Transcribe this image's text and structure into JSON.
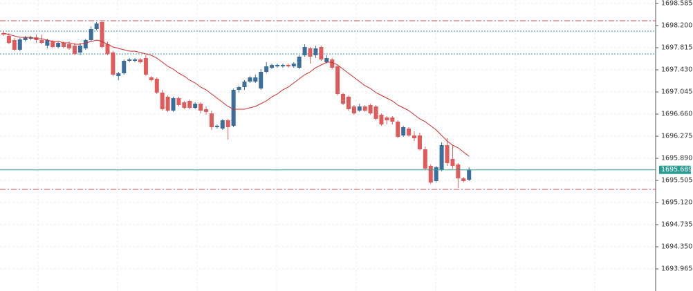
{
  "chart_data": {
    "type": "candlestick",
    "ylim": [
      1693.58,
      1698.645
    ],
    "yticks": [
      1698.585,
      {
        "value": 1698.2,
        "label": "1698.200"
      },
      1697.815,
      {
        "value": 1697.43,
        "label": "1697.430"
      },
      1697.045,
      {
        "value": 1696.66,
        "label": "1696.660"
      },
      1696.275,
      {
        "value": 1695.89,
        "label": "1695.890"
      },
      1695.505,
      {
        "value": 1695.12,
        "label": "1695.120"
      },
      1694.735,
      {
        "value": 1694.35,
        "label": "1694.350"
      },
      1693.965
    ],
    "grid": true,
    "up_color": "#3b6e9b",
    "down_color": "#e05c5c",
    "open": [
      1698.068,
      1698.019,
      1697.947,
      1697.779,
      1697.947,
      1697.971,
      1697.995,
      1697.947,
      1697.851,
      1697.923,
      1697.827,
      1697.899,
      1697.875,
      1697.851,
      1697.731,
      1697.803,
      1697.947,
      1698.14,
      1698.26,
      1697.875,
      1697.731,
      1697.322,
      1697.37,
      1697.586,
      1697.586,
      1697.61,
      1697.635,
      1697.298,
      1697.274,
      1697.033,
      1696.961,
      1696.72,
      1696.937,
      1696.865,
      1696.889,
      1696.768,
      1696.84,
      1696.744,
      1696.672,
      1696.431,
      1696.407,
      1696.552,
      1696.455,
      1697.081,
      1697.129,
      1697.225,
      1697.225,
      1697.105,
      1697.394,
      1697.466,
      1697.49,
      1697.49,
      1697.514,
      1697.49,
      1697.466,
      1697.683,
      1697.803,
      1697.683,
      1697.827,
      1697.562,
      1697.61,
      1697.49,
      1697.009,
      1696.961,
      1696.792,
      1696.72,
      1696.792,
      1696.816,
      1696.792,
      1696.648,
      1696.6,
      1696.6,
      1696.528,
      1696.287,
      1696.407,
      1696.287,
      1696.287,
      1696.046,
      1695.758,
      1695.493,
      1695.686,
      1696.119,
      1695.878,
      1695.782,
      1695.541,
      1695.517
    ],
    "high": [
      1698.104,
      1698.068,
      1697.983,
      1697.983,
      1698.019,
      1698.019,
      1698.044,
      1698.044,
      1697.971,
      1697.947,
      1697.923,
      1697.923,
      1697.923,
      1697.899,
      1697.899,
      1697.971,
      1698.188,
      1698.26,
      1698.284,
      1697.923,
      1697.755,
      1697.394,
      1697.61,
      1697.635,
      1697.635,
      1697.635,
      1697.683,
      1697.322,
      1697.298,
      1697.081,
      1696.985,
      1696.961,
      1696.961,
      1696.889,
      1696.913,
      1696.865,
      1696.865,
      1696.792,
      1696.72,
      1696.48,
      1696.576,
      1696.576,
      1697.105,
      1697.153,
      1697.25,
      1697.322,
      1697.346,
      1697.442,
      1697.562,
      1697.538,
      1697.538,
      1697.538,
      1697.538,
      1697.562,
      1697.683,
      1697.875,
      1697.827,
      1697.851,
      1697.851,
      1697.683,
      1697.635,
      1697.514,
      1697.033,
      1696.985,
      1696.816,
      1696.84,
      1696.816,
      1696.84,
      1696.816,
      1696.672,
      1696.624,
      1696.624,
      1696.552,
      1696.455,
      1696.431,
      1696.359,
      1696.335,
      1696.095,
      1695.782,
      1695.758,
      1696.167,
      1696.239,
      1696.119,
      1695.806,
      1695.565,
      1695.734
    ],
    "low": [
      1698.019,
      1697.875,
      1697.755,
      1697.755,
      1697.923,
      1697.947,
      1697.899,
      1697.875,
      1697.803,
      1697.803,
      1697.803,
      1697.803,
      1697.779,
      1697.683,
      1697.683,
      1697.779,
      1697.923,
      1698.116,
      1697.803,
      1697.683,
      1697.322,
      1697.25,
      1697.346,
      1697.562,
      1697.562,
      1697.538,
      1697.322,
      1697.225,
      1697.009,
      1696.72,
      1696.696,
      1696.696,
      1696.792,
      1696.744,
      1696.744,
      1696.744,
      1696.672,
      1696.648,
      1696.383,
      1696.407,
      1696.383,
      1696.215,
      1696.431,
      1697.033,
      1697.081,
      1697.201,
      1697.201,
      1697.081,
      1697.37,
      1697.442,
      1697.466,
      1697.466,
      1697.466,
      1697.466,
      1697.442,
      1697.659,
      1697.538,
      1697.635,
      1697.586,
      1697.538,
      1697.442,
      1696.985,
      1696.816,
      1696.72,
      1696.648,
      1696.696,
      1696.696,
      1696.648,
      1696.552,
      1696.455,
      1696.48,
      1696.48,
      1696.239,
      1696.263,
      1696.263,
      1696.191,
      1696.022,
      1695.686,
      1695.445,
      1695.469,
      1695.662,
      1695.758,
      1695.71,
      1695.373,
      1695.469,
      1695.493
    ],
    "close": [
      1698.044,
      1697.899,
      1697.779,
      1697.959,
      1697.995,
      1697.995,
      1697.947,
      1697.899,
      1697.947,
      1697.827,
      1697.899,
      1697.827,
      1697.803,
      1697.707,
      1697.851,
      1697.947,
      1698.14,
      1698.236,
      1697.827,
      1697.707,
      1697.346,
      1697.37,
      1697.586,
      1697.61,
      1697.61,
      1697.562,
      1697.346,
      1697.25,
      1697.033,
      1696.744,
      1696.72,
      1696.937,
      1696.816,
      1696.768,
      1696.768,
      1696.84,
      1696.72,
      1696.696,
      1696.431,
      1696.455,
      1696.552,
      1696.431,
      1697.081,
      1697.129,
      1697.225,
      1697.298,
      1697.298,
      1697.394,
      1697.49,
      1697.514,
      1697.514,
      1697.514,
      1697.49,
      1697.538,
      1697.659,
      1697.827,
      1697.659,
      1697.803,
      1697.61,
      1697.635,
      1697.466,
      1697.009,
      1696.84,
      1696.744,
      1696.672,
      1696.792,
      1696.72,
      1696.672,
      1696.576,
      1696.48,
      1696.552,
      1696.528,
      1696.263,
      1696.431,
      1696.287,
      1696.239,
      1696.046,
      1695.71,
      1695.469,
      1695.734,
      1696.119,
      1695.806,
      1695.758,
      1695.541,
      1695.493,
      1695.689
    ],
    "moving_average": {
      "color": "#d42a2a",
      "values": [
        1698.068,
        1698.044,
        1698.019,
        1697.995,
        1697.995,
        1697.995,
        1697.971,
        1697.971,
        1697.947,
        1697.923,
        1697.923,
        1697.899,
        1697.899,
        1697.875,
        1697.875,
        1697.899,
        1697.923,
        1697.947,
        1697.923,
        1697.875,
        1697.827,
        1697.803,
        1697.779,
        1697.755,
        1697.755,
        1697.731,
        1697.707,
        1697.683,
        1697.635,
        1697.562,
        1697.49,
        1697.442,
        1697.37,
        1697.322,
        1697.25,
        1697.201,
        1697.129,
        1697.081,
        1697.009,
        1696.937,
        1696.865,
        1696.792,
        1696.744,
        1696.744,
        1696.744,
        1696.768,
        1696.792,
        1696.84,
        1696.889,
        1696.961,
        1697.009,
        1697.081,
        1697.129,
        1697.201,
        1697.274,
        1697.346,
        1697.394,
        1697.466,
        1697.514,
        1697.562,
        1697.562,
        1697.514,
        1697.442,
        1697.37,
        1697.298,
        1697.225,
        1697.153,
        1697.105,
        1697.033,
        1696.985,
        1696.937,
        1696.889,
        1696.816,
        1696.768,
        1696.72,
        1696.648,
        1696.576,
        1696.528,
        1696.455,
        1696.383,
        1696.287,
        1696.191,
        1696.119,
        1696.071,
        1695.998,
        1695.926
      ]
    },
    "levels": [
      {
        "value": 1698.284,
        "color": "#d64545",
        "style": "dash-dot"
      },
      {
        "value": 1698.104,
        "color": "#2a9aa0",
        "style": "dotted"
      },
      {
        "value": 1697.707,
        "color": "#2a9aa0",
        "style": "dotted"
      },
      {
        "value": 1695.349,
        "color": "#d64545",
        "style": "dash-dot"
      }
    ],
    "last_price": 1695.689,
    "last_price_color": "#2a9d95"
  }
}
